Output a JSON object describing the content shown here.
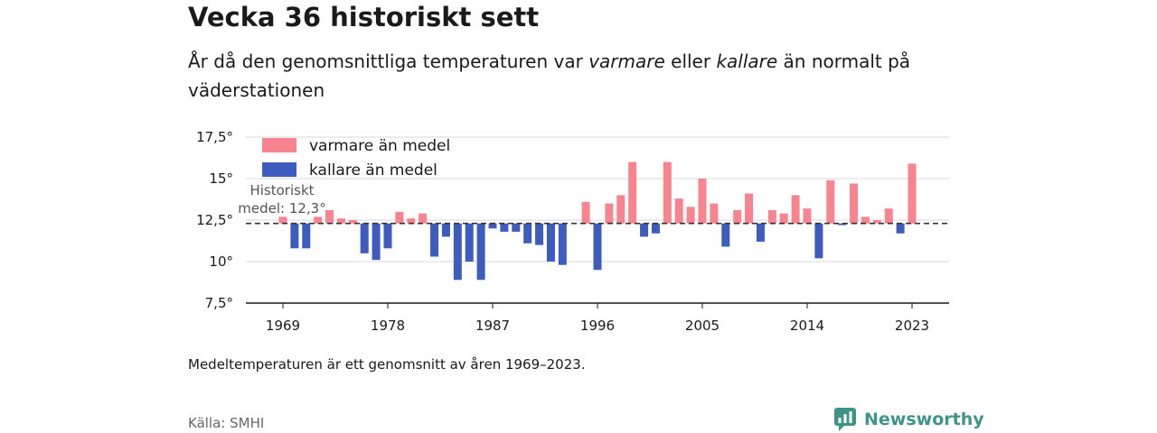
{
  "title": "Vecka 36 historiskt sett",
  "subtitle": {
    "part1": "År då den genomsnittliga temperaturen var ",
    "warm_word": "varmare",
    "part2": " eller ",
    "cold_word": "kallare",
    "part3": " än normalt på väderstationen"
  },
  "note": "Medeltemperaturen är ett genomsnitt av åren 1969–2023.",
  "source": "Källa: SMHI",
  "brand": "Newsworthy",
  "colors": {
    "warm": "#f7848f",
    "cold": "#3e5cbd",
    "brand": "#3f9488"
  },
  "chart_data": {
    "type": "bar",
    "baseline": 12.3,
    "reference_label": [
      "Historiskt",
      "medel: 12,3°"
    ],
    "ylim": [
      7.5,
      17.5
    ],
    "yticks": [
      7.5,
      10,
      12.5,
      15,
      17.5
    ],
    "ytick_labels": [
      "7,5°",
      "10°",
      "12,5°",
      "15°",
      "17,5°"
    ],
    "xticks": [
      1969,
      1978,
      1987,
      1996,
      2005,
      2014,
      2023
    ],
    "xtick_labels": [
      "1969",
      "1978",
      "1987",
      "1996",
      "2005",
      "2014",
      "2023"
    ],
    "legend": [
      {
        "label": "varmare än medel",
        "color": "#f7848f"
      },
      {
        "label": "kallare än medel",
        "color": "#3e5cbd"
      }
    ],
    "x": [
      1969,
      1970,
      1971,
      1972,
      1973,
      1974,
      1975,
      1976,
      1977,
      1978,
      1979,
      1980,
      1981,
      1982,
      1983,
      1984,
      1985,
      1986,
      1987,
      1988,
      1989,
      1990,
      1991,
      1992,
      1993,
      1994,
      1995,
      1996,
      1997,
      1998,
      1999,
      2000,
      2001,
      2002,
      2003,
      2004,
      2005,
      2006,
      2007,
      2008,
      2009,
      2010,
      2011,
      2012,
      2013,
      2014,
      2015,
      2016,
      2017,
      2018,
      2019,
      2020,
      2021,
      2022,
      2023
    ],
    "values": [
      12.7,
      10.8,
      10.8,
      12.7,
      13.1,
      12.6,
      12.5,
      10.5,
      10.1,
      10.8,
      13.0,
      12.6,
      12.9,
      10.3,
      11.5,
      8.9,
      10.0,
      8.9,
      12.0,
      11.8,
      11.8,
      11.1,
      11.0,
      10.0,
      9.8,
      null,
      13.6,
      9.5,
      13.5,
      14.0,
      16.0,
      11.5,
      11.7,
      16.0,
      13.8,
      13.3,
      15.0,
      13.5,
      10.9,
      13.1,
      14.1,
      11.2,
      13.1,
      12.9,
      14.0,
      13.2,
      10.2,
      14.9,
      12.2,
      14.7,
      12.7,
      12.5,
      13.2,
      11.7,
      15.9
    ]
  }
}
